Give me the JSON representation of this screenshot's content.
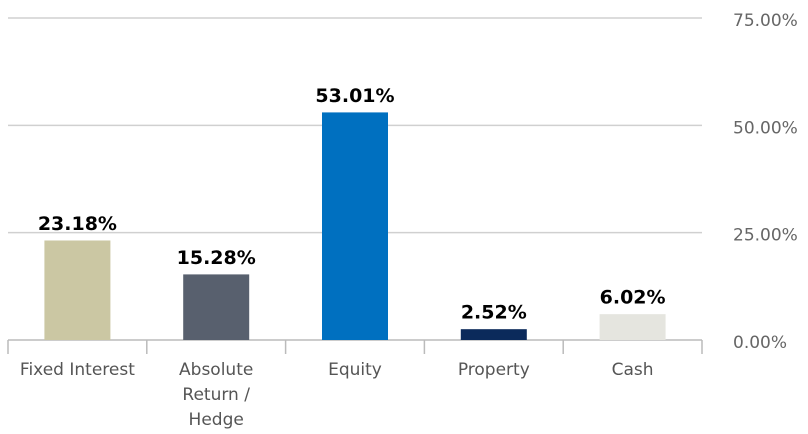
{
  "chart_data": {
    "type": "bar",
    "categories": [
      "Fixed Interest",
      "Absolute Return / Hedge",
      "Equity",
      "Property",
      "Cash"
    ],
    "values": [
      23.18,
      15.28,
      53.01,
      2.52,
      6.02
    ],
    "value_labels": [
      "23.18%",
      "15.28%",
      "53.01%",
      "2.52%",
      "6.02%"
    ],
    "colors": [
      "#cbc7a3",
      "#58606e",
      "#0070c0",
      "#0b2a5b",
      "#e5e5df"
    ],
    "ylim": [
      0,
      75
    ],
    "yticks": [
      {
        "value": 0,
        "label": "0.00%"
      },
      {
        "value": 25,
        "label": "25.00%"
      },
      {
        "value": 50,
        "label": "50.00%"
      },
      {
        "value": 75,
        "label": "75.00%"
      }
    ],
    "grid": true
  }
}
